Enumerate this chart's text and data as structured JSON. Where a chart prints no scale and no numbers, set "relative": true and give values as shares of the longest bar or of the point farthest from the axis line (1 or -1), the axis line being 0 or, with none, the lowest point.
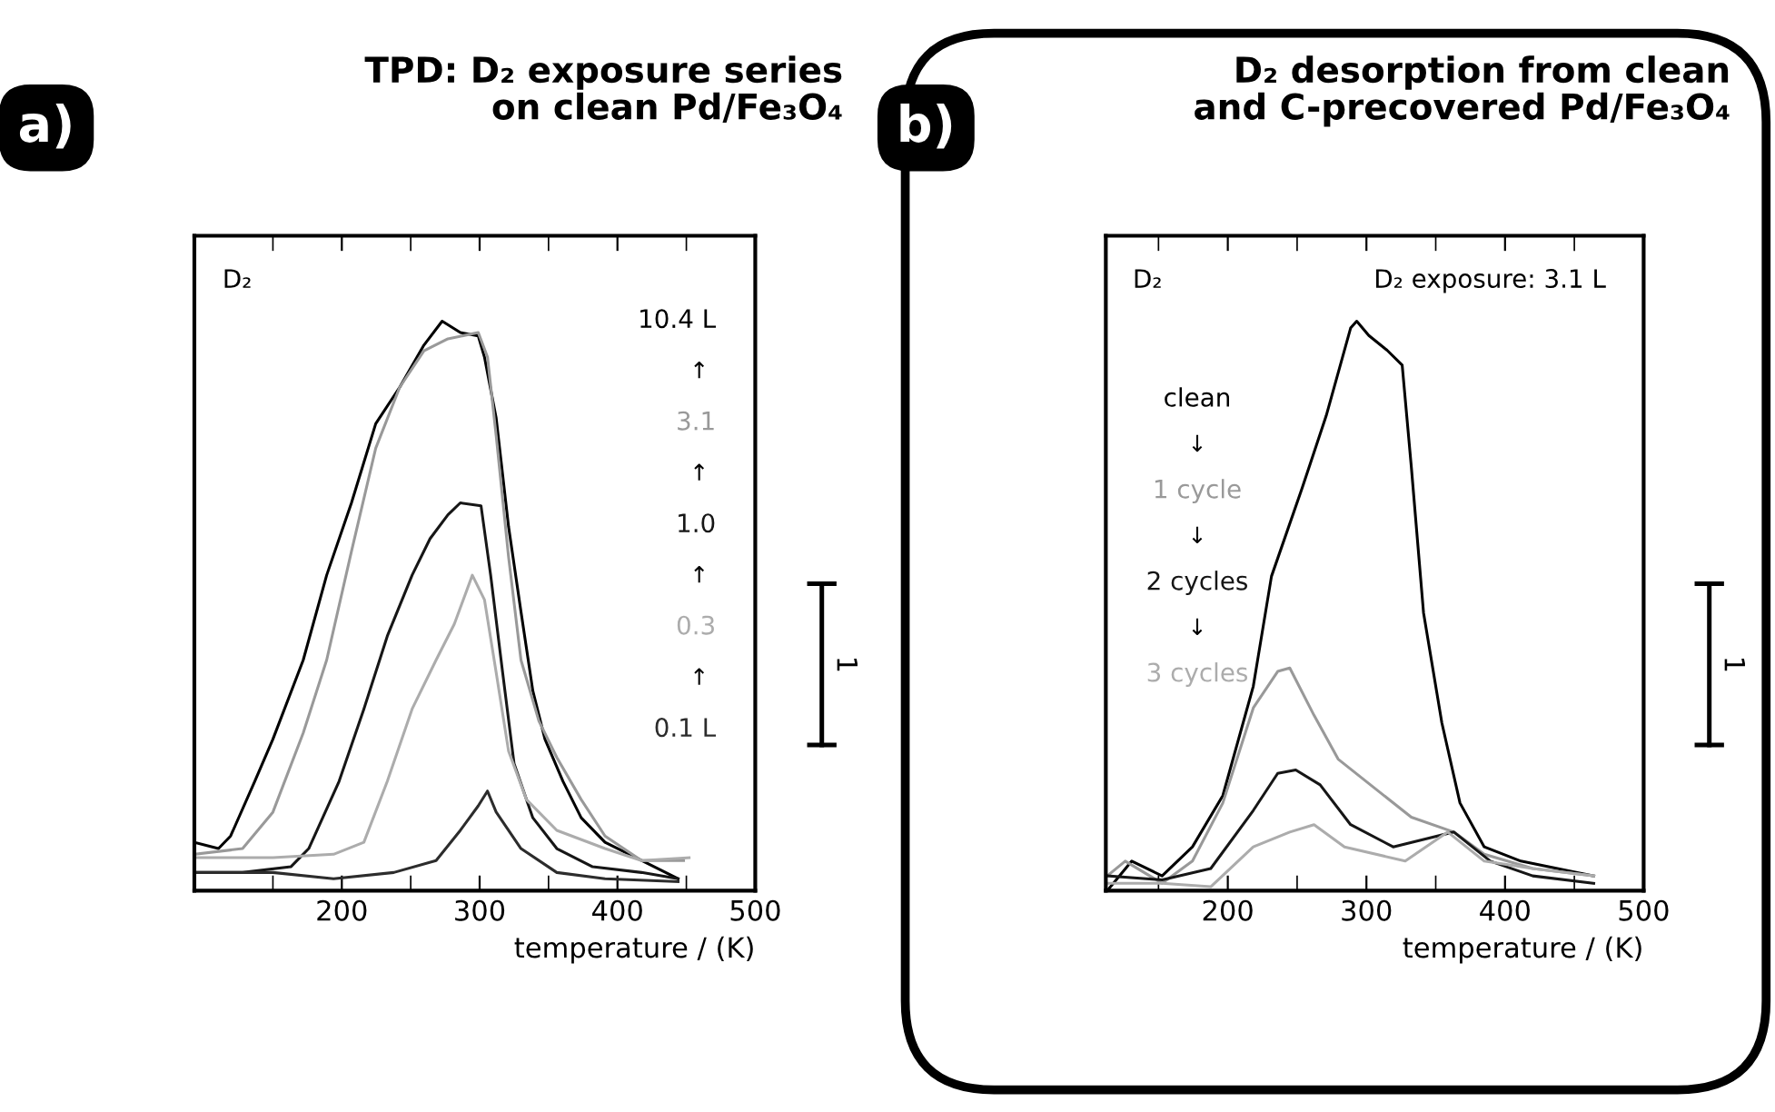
{
  "chart_data": [
    {
      "type": "line",
      "title": "TPD: D₂ exposure series\non clean Pd/Fe₃O₄",
      "xlabel": "temperature / (K)",
      "relative": true,
      "xlim": [
        93,
        500
      ],
      "xticks": [
        200,
        300,
        400,
        500
      ],
      "legend": "top right",
      "annotations": [
        "a)",
        "D₂",
        "1",
        "↑",
        "↑",
        "↑",
        "↑"
      ],
      "series": [
        {
          "name": "10.4 L",
          "color": "#000000",
          "x": [
            93,
            110.5,
            119.3,
            136.8,
            150,
            172,
            189,
            207,
            224.6,
            242,
            259.6,
            272.8,
            286,
            299,
            303.5,
            312,
            321,
            330,
            338.6,
            347.4,
            360.5,
            373.7,
            391,
            417.5,
            444
          ],
          "values": [
            0.085,
            0.074,
            0.096,
            0.192,
            0.266,
            0.405,
            0.554,
            0.681,
            0.82,
            0.884,
            0.958,
            1.0,
            0.98,
            0.974,
            0.937,
            0.83,
            0.639,
            0.49,
            0.351,
            0.266,
            0.192,
            0.128,
            0.085,
            0.053,
            0.021
          ]
        },
        {
          "name": "3.1",
          "color": "#999999",
          "x": [
            93,
            128,
            150,
            172,
            189,
            207,
            224.6,
            242,
            259.6,
            277,
            299,
            305.7,
            312,
            321,
            330,
            343,
            356,
            373.7,
            391,
            417.5,
            448
          ],
          "values": [
            0.064,
            0.074,
            0.138,
            0.277,
            0.405,
            0.596,
            0.777,
            0.884,
            0.948,
            0.969,
            0.98,
            0.937,
            0.799,
            0.586,
            0.405,
            0.298,
            0.234,
            0.16,
            0.096,
            0.053,
            0.053
          ]
        },
        {
          "name": "1.0",
          "color": "#161616",
          "x": [
            93,
            128,
            163,
            176,
            198,
            216,
            233,
            251,
            264,
            277,
            286,
            301,
            308,
            316.7,
            325,
            338.6,
            356,
            382,
            417.5,
            444
          ],
          "values": [
            0.032,
            0.032,
            0.042,
            0.074,
            0.192,
            0.319,
            0.447,
            0.554,
            0.618,
            0.66,
            0.681,
            0.676,
            0.554,
            0.383,
            0.223,
            0.128,
            0.074,
            0.042,
            0.032,
            0.021
          ]
        },
        {
          "name": "0.3",
          "color": "#acacac",
          "x": [
            93,
            150,
            194,
            216,
            233,
            251,
            268.4,
            281.6,
            294.7,
            303.5,
            312,
            321,
            334,
            356,
            391,
            417.5,
            452
          ],
          "values": [
            0.058,
            0.058,
            0.064,
            0.085,
            0.192,
            0.319,
            0.405,
            0.468,
            0.554,
            0.511,
            0.383,
            0.245,
            0.16,
            0.106,
            0.074,
            0.053,
            0.058
          ]
        },
        {
          "name": "0.1 L",
          "color": "#2c2c2c",
          "x": [
            93,
            150,
            194,
            237.7,
            268.4,
            286,
            299,
            305.7,
            312,
            330,
            356,
            391,
            444
          ],
          "values": [
            0.032,
            0.032,
            0.021,
            0.032,
            0.053,
            0.106,
            0.149,
            0.175,
            0.138,
            0.074,
            0.032,
            0.021,
            0.016
          ]
        }
      ]
    },
    {
      "type": "line",
      "title": "D₂ desorption from clean\nand C-precovered Pd/Fe₃O₄",
      "xlabel": "temperature / (K)",
      "relative": true,
      "xlim": [
        112,
        500
      ],
      "xticks": [
        200,
        300,
        400,
        500
      ],
      "legend": "top left",
      "annotations": [
        "b)",
        "D₂",
        "D₂ exposure: 3.1 L",
        "1",
        "↓",
        "↓",
        "↓"
      ],
      "series": [
        {
          "name": "clean",
          "color": "#000000",
          "x": [
            113,
            130.7,
            152.6,
            174.5,
            196.4,
            218.4,
            231.5,
            253.5,
            271,
            288.6,
            293,
            301.7,
            314.9,
            325.8,
            332.4,
            341.2,
            354.4,
            367.5,
            385,
            411.4,
            464
          ],
          "values": [
            0.0,
            0.052,
            0.026,
            0.077,
            0.167,
            0.359,
            0.552,
            0.706,
            0.834,
            0.988,
            1.0,
            0.975,
            0.949,
            0.923,
            0.744,
            0.488,
            0.295,
            0.154,
            0.077,
            0.052,
            0.026
          ]
        },
        {
          "name": "1 cycle",
          "color": "#999999",
          "x": [
            113,
            126,
            152.6,
            174.5,
            196.4,
            218.4,
            236,
            244.7,
            262.2,
            279.6,
            306,
            332.4,
            363.1,
            385,
            420,
            464
          ],
          "values": [
            0.026,
            0.052,
            0.013,
            0.052,
            0.154,
            0.321,
            0.385,
            0.391,
            0.308,
            0.231,
            0.18,
            0.129,
            0.103,
            0.064,
            0.039,
            0.026
          ]
        },
        {
          "name": "2 cycles",
          "color": "#161616",
          "x": [
            113,
            152.6,
            187.7,
            218.4,
            236,
            249,
            266.6,
            288.6,
            319.3,
            363.1,
            389.4,
            420,
            464
          ],
          "values": [
            0.026,
            0.019,
            0.039,
            0.141,
            0.206,
            0.212,
            0.186,
            0.116,
            0.077,
            0.103,
            0.052,
            0.026,
            0.013
          ]
        },
        {
          "name": "3 cycles",
          "color": "#acacac",
          "x": [
            113,
            152.6,
            187.7,
            218.4,
            244.7,
            262.2,
            284.2,
            328,
            358.7,
            385,
            420,
            464
          ],
          "values": [
            0.013,
            0.013,
            0.007,
            0.077,
            0.103,
            0.116,
            0.077,
            0.052,
            0.103,
            0.052,
            0.039,
            0.026
          ]
        }
      ]
    }
  ]
}
